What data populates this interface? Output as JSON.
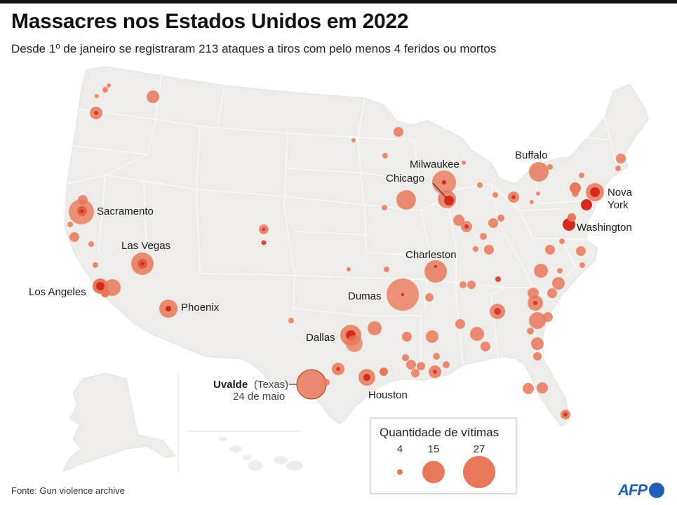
{
  "title": "Massacres nos Estados Unidos em 2022",
  "subtitle": "Desde 1º de janeiro se registraram 213 ataques a tiros com pelo menos 4 feridos ou mortos",
  "source": "Fonte: Gun violence archive",
  "logo": "AFP",
  "colors": {
    "land": "#efedea",
    "border": "#ffffff",
    "bubble": "#e8785a",
    "core": "#d42a1e",
    "accent_logo": "#1f5fb4"
  },
  "labels": {
    "sacramento": "Sacramento",
    "las_vegas": "Las Vegas",
    "los_angeles": "Los Angeles",
    "phoenix": "Phoenix",
    "dallas": "Dallas",
    "houston": "Houston",
    "dumas": "Dumas",
    "charleston": "Charleston",
    "milwaukee": "Milwaukee",
    "chicago": "Chicago",
    "buffalo": "Buffalo",
    "nova": "Nova",
    "york": "York",
    "washington": "Washington",
    "uvalde": "Uvalde",
    "uvalde_state": "(Texas)",
    "uvalde_date": "24 de maio"
  },
  "legend": {
    "title": "Quantidade de vítimas",
    "items": [
      {
        "label": "4",
        "value": 4
      },
      {
        "label": "15",
        "value": 15
      },
      {
        "label": "27",
        "value": 27
      }
    ]
  }
}
